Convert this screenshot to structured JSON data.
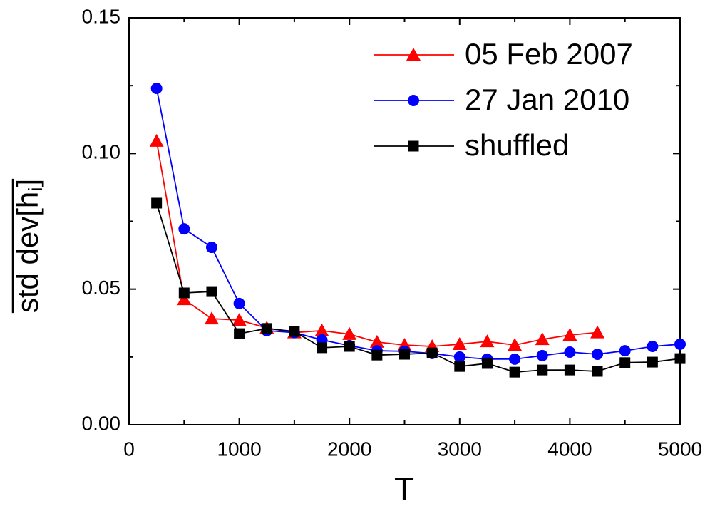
{
  "chart_data": {
    "type": "line",
    "xlabel": "T",
    "ylabel_parts": [
      "std dev[h",
      "i",
      "]"
    ],
    "x": [
      250,
      500,
      750,
      1000,
      1250,
      1500,
      1750,
      2000,
      2250,
      2500,
      2750,
      3000,
      3250,
      3500,
      3750,
      4000,
      4250,
      4500,
      4750,
      5000
    ],
    "series": [
      {
        "name": "05 Feb 2007",
        "color": "#ff0000",
        "marker": "triangle",
        "values": [
          0.1046,
          0.0462,
          0.0391,
          0.0386,
          0.0357,
          0.034,
          0.0347,
          0.0334,
          0.0305,
          0.0294,
          0.0289,
          0.0297,
          0.0307,
          0.0294,
          0.0315,
          0.0331,
          0.034,
          null,
          null,
          null
        ]
      },
      {
        "name": "27 Jan 2010",
        "color": "#0000ff",
        "marker": "circle",
        "values": [
          0.124,
          0.0722,
          0.0654,
          0.0447,
          0.0347,
          0.034,
          0.0313,
          0.0292,
          0.0273,
          0.0271,
          0.0263,
          0.025,
          0.0242,
          0.0242,
          0.0255,
          0.0268,
          0.026,
          0.0273,
          0.0289,
          0.0297
        ]
      },
      {
        "name": "shuffled",
        "color": "#000000",
        "marker": "square",
        "values": [
          0.0817,
          0.0486,
          0.0491,
          0.0336,
          0.0355,
          0.0344,
          0.0284,
          0.0289,
          0.0257,
          0.026,
          0.0265,
          0.0215,
          0.0226,
          0.0194,
          0.0202,
          0.0202,
          0.0197,
          0.0229,
          0.0231,
          0.0244
        ]
      }
    ],
    "xlim": [
      0,
      5000
    ],
    "xticks": [
      0,
      1000,
      2000,
      3000,
      4000,
      5000
    ],
    "ylim": [
      0,
      0.15
    ],
    "yticks": [
      {
        "value": 0,
        "label": "0.00"
      },
      {
        "value": 0.05,
        "label": "0.05"
      },
      {
        "value": 0.1,
        "label": "0.10"
      },
      {
        "value": 0.15,
        "label": "0.15"
      }
    ],
    "legend": "upper right"
  }
}
